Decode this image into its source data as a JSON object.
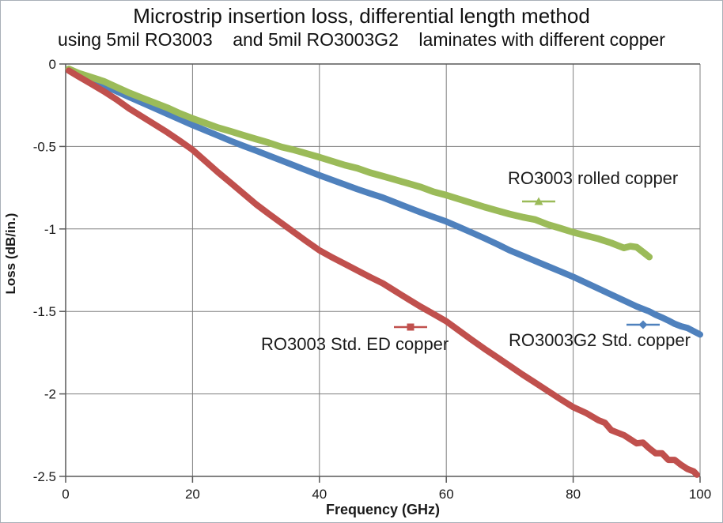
{
  "chart_data": {
    "type": "line",
    "title": "Microstrip insertion loss, differential length method",
    "subtitle": "using 5mil RO3003    and 5mil RO3003G2    laminates with different copper",
    "xlabel": "Frequency (GHz)",
    "ylabel": "Loss (dB/in.)",
    "x_axis": {
      "min": 0,
      "max": 100,
      "ticks": [
        0,
        20,
        40,
        60,
        80,
        100
      ]
    },
    "y_axis": {
      "min": -2.5,
      "max": 0,
      "ticks": [
        0,
        -0.5,
        -1,
        -1.5,
        -2,
        -2.5
      ]
    },
    "grid": true,
    "legend": "inline-annotations",
    "colors": {
      "grid": "#7F7F7F",
      "axis": "#595959",
      "text": "#1A1A1A"
    },
    "series": [
      {
        "name": "RO3003G2 Std. copper",
        "color": "#4F81BD",
        "marker": "diamond",
        "points": [
          [
            0.5,
            -0.035
          ],
          [
            2,
            -0.065
          ],
          [
            4,
            -0.095
          ],
          [
            6,
            -0.13
          ],
          [
            8,
            -0.165
          ],
          [
            10,
            -0.2
          ],
          [
            12,
            -0.234
          ],
          [
            14,
            -0.268
          ],
          [
            16,
            -0.302
          ],
          [
            18,
            -0.336
          ],
          [
            20,
            -0.37
          ],
          [
            22,
            -0.402
          ],
          [
            24,
            -0.434
          ],
          [
            26,
            -0.466
          ],
          [
            28,
            -0.496
          ],
          [
            30,
            -0.525
          ],
          [
            32,
            -0.555
          ],
          [
            34,
            -0.585
          ],
          [
            36,
            -0.615
          ],
          [
            38,
            -0.645
          ],
          [
            40,
            -0.675
          ],
          [
            42,
            -0.703
          ],
          [
            44,
            -0.731
          ],
          [
            46,
            -0.759
          ],
          [
            48,
            -0.785
          ],
          [
            50,
            -0.81
          ],
          [
            52,
            -0.84
          ],
          [
            54,
            -0.87
          ],
          [
            56,
            -0.9
          ],
          [
            58,
            -0.928
          ],
          [
            60,
            -0.955
          ],
          [
            62,
            -0.988
          ],
          [
            64,
            -1.022
          ],
          [
            66,
            -1.056
          ],
          [
            68,
            -1.092
          ],
          [
            70,
            -1.13
          ],
          [
            72,
            -1.162
          ],
          [
            74,
            -1.194
          ],
          [
            76,
            -1.226
          ],
          [
            78,
            -1.258
          ],
          [
            80,
            -1.29
          ],
          [
            82,
            -1.326
          ],
          [
            84,
            -1.362
          ],
          [
            86,
            -1.398
          ],
          [
            88,
            -1.434
          ],
          [
            90,
            -1.47
          ],
          [
            92,
            -1.5
          ],
          [
            93,
            -1.52
          ],
          [
            94,
            -1.537
          ],
          [
            95,
            -1.555
          ],
          [
            96,
            -1.575
          ],
          [
            97,
            -1.59
          ],
          [
            98,
            -1.6
          ],
          [
            99,
            -1.62
          ],
          [
            100,
            -1.64
          ]
        ]
      },
      {
        "name": "RO3003 rolled copper",
        "color": "#9BBB59",
        "marker": "triangle",
        "points": [
          [
            0.5,
            -0.03
          ],
          [
            2,
            -0.055
          ],
          [
            4,
            -0.08
          ],
          [
            6,
            -0.105
          ],
          [
            8,
            -0.14
          ],
          [
            10,
            -0.175
          ],
          [
            12,
            -0.205
          ],
          [
            14,
            -0.235
          ],
          [
            16,
            -0.265
          ],
          [
            18,
            -0.3
          ],
          [
            20,
            -0.33
          ],
          [
            22,
            -0.358
          ],
          [
            24,
            -0.386
          ],
          [
            26,
            -0.408
          ],
          [
            28,
            -0.432
          ],
          [
            30,
            -0.455
          ],
          [
            32,
            -0.477
          ],
          [
            34,
            -0.503
          ],
          [
            36,
            -0.521
          ],
          [
            38,
            -0.543
          ],
          [
            40,
            -0.565
          ],
          [
            42,
            -0.589
          ],
          [
            44,
            -0.613
          ],
          [
            46,
            -0.632
          ],
          [
            48,
            -0.659
          ],
          [
            50,
            -0.68
          ],
          [
            52,
            -0.702
          ],
          [
            54,
            -0.724
          ],
          [
            56,
            -0.746
          ],
          [
            58,
            -0.775
          ],
          [
            60,
            -0.795
          ],
          [
            62,
            -0.819
          ],
          [
            64,
            -0.843
          ],
          [
            66,
            -0.867
          ],
          [
            68,
            -0.889
          ],
          [
            70,
            -0.91
          ],
          [
            72,
            -0.928
          ],
          [
            74,
            -0.943
          ],
          [
            76,
            -0.973
          ],
          [
            78,
            -0.996
          ],
          [
            80,
            -1.02
          ],
          [
            82,
            -1.04
          ],
          [
            84,
            -1.06
          ],
          [
            86,
            -1.085
          ],
          [
            87,
            -1.1
          ],
          [
            88,
            -1.115
          ],
          [
            89,
            -1.105
          ],
          [
            90,
            -1.11
          ],
          [
            91,
            -1.14
          ],
          [
            92,
            -1.17
          ]
        ]
      },
      {
        "name": "RO3003 Std. ED copper",
        "color": "#C0504D",
        "marker": "square",
        "points": [
          [
            0.5,
            -0.04
          ],
          [
            2,
            -0.075
          ],
          [
            4,
            -0.12
          ],
          [
            6,
            -0.165
          ],
          [
            8,
            -0.215
          ],
          [
            10,
            -0.27
          ],
          [
            12,
            -0.318
          ],
          [
            14,
            -0.366
          ],
          [
            16,
            -0.414
          ],
          [
            18,
            -0.466
          ],
          [
            20,
            -0.52
          ],
          [
            22,
            -0.588
          ],
          [
            24,
            -0.656
          ],
          [
            26,
            -0.72
          ],
          [
            28,
            -0.785
          ],
          [
            30,
            -0.85
          ],
          [
            32,
            -0.908
          ],
          [
            34,
            -0.964
          ],
          [
            36,
            -1.02
          ],
          [
            38,
            -1.076
          ],
          [
            40,
            -1.13
          ],
          [
            42,
            -1.172
          ],
          [
            44,
            -1.212
          ],
          [
            46,
            -1.252
          ],
          [
            48,
            -1.292
          ],
          [
            50,
            -1.33
          ],
          [
            52,
            -1.378
          ],
          [
            54,
            -1.426
          ],
          [
            56,
            -1.472
          ],
          [
            58,
            -1.516
          ],
          [
            60,
            -1.56
          ],
          [
            62,
            -1.616
          ],
          [
            64,
            -1.672
          ],
          [
            66,
            -1.726
          ],
          [
            68,
            -1.778
          ],
          [
            70,
            -1.83
          ],
          [
            72,
            -1.882
          ],
          [
            74,
            -1.932
          ],
          [
            76,
            -1.982
          ],
          [
            78,
            -2.032
          ],
          [
            80,
            -2.08
          ],
          [
            82,
            -2.115
          ],
          [
            84,
            -2.16
          ],
          [
            85,
            -2.175
          ],
          [
            86,
            -2.22
          ],
          [
            87,
            -2.235
          ],
          [
            88,
            -2.25
          ],
          [
            89,
            -2.275
          ],
          [
            90,
            -2.3
          ],
          [
            91,
            -2.295
          ],
          [
            92,
            -2.33
          ],
          [
            93,
            -2.36
          ],
          [
            94,
            -2.36
          ],
          [
            95,
            -2.4
          ],
          [
            96,
            -2.4
          ],
          [
            97,
            -2.43
          ],
          [
            98,
            -2.455
          ],
          [
            99,
            -2.47
          ],
          [
            99.5,
            -2.49
          ]
        ]
      }
    ],
    "annotations": [
      {
        "text": "RO3003 rolled copper",
        "series": 1
      },
      {
        "text": "RO3003 Std. ED copper",
        "series": 2
      },
      {
        "text": "RO3003G2 Std. copper",
        "series": 0
      }
    ]
  }
}
